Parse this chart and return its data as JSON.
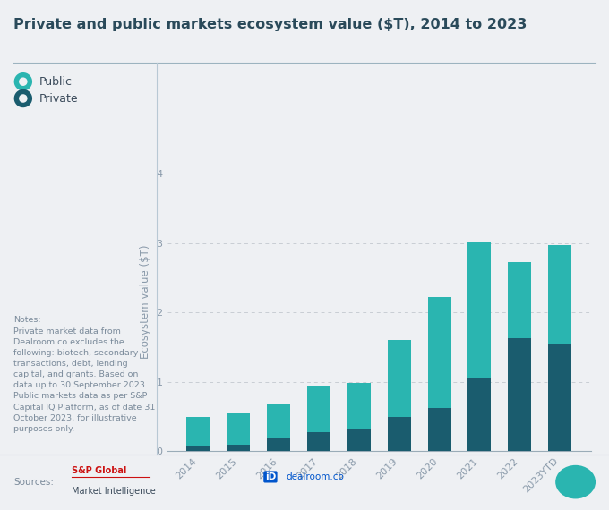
{
  "title": "Private and public markets ecosystem value ($T), 2014 to 2023",
  "categories": [
    "2014",
    "2015",
    "2016",
    "2017",
    "2018",
    "2019",
    "2020",
    "2021",
    "2022",
    "2023YTD"
  ],
  "private_values": [
    0.08,
    0.1,
    0.18,
    0.28,
    0.33,
    0.5,
    0.63,
    1.05,
    1.63,
    1.55
  ],
  "public_values": [
    0.42,
    0.45,
    0.5,
    0.67,
    0.65,
    1.1,
    1.6,
    1.97,
    1.1,
    1.42
  ],
  "public_color": "#2ab5b0",
  "private_color": "#1a5c6e",
  "ylabel": "Ecosystem value ($T)",
  "ylim": [
    0,
    4.3
  ],
  "yticks": [
    0,
    1,
    2,
    3,
    4
  ],
  "background_color": "#eef0f3",
  "grid_color": "#c8cdd4",
  "title_color": "#2a4a5a",
  "axis_label_color": "#8a9aaa",
  "tick_label_color": "#8a9aaa",
  "legend_public_label": "Public",
  "legend_private_label": "Private",
  "notes_text": "Notes:\nPrivate market data from\nDealroom.co excludes the\nfollowing: biotech, secondary\ntransactions, debt, lending\ncapital, and grants. Based on\ndata up to 30 September 2023.\nPublic markets data as per S&P\nCapital IQ Platform, as of date 31\nOctober 2023, for illustrative\npurposes only.",
  "title_fontsize": 11.5,
  "axis_fontsize": 8.5,
  "tick_fontsize": 8,
  "notes_fontsize": 6.8,
  "legend_fontsize": 9
}
